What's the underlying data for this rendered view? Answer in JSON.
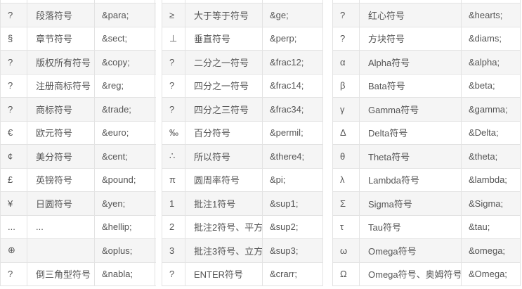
{
  "colors": {
    "row_stripe": "#f5f5f5",
    "row_plain": "#ffffff",
    "border": "#e3e3e3",
    "text": "#555555",
    "background": "#ffffff"
  },
  "tables": [
    {
      "id": "entity-table-left",
      "rows": [
        {
          "symbol": "?",
          "label": "段落符号",
          "code": "&para;"
        },
        {
          "symbol": "§",
          "label": "章节符号",
          "code": "&sect;"
        },
        {
          "symbol": "?",
          "label": "版权所有符号",
          "code": "&copy;"
        },
        {
          "symbol": "?",
          "label": "注册商标符号",
          "code": "&reg;"
        },
        {
          "symbol": "?",
          "label": "商标符号",
          "code": "&trade;"
        },
        {
          "symbol": "€",
          "label": "欧元符号",
          "code": "&euro;"
        },
        {
          "symbol": "¢",
          "label": "美分符号",
          "code": "&cent;"
        },
        {
          "symbol": "£",
          "label": "英镑符号",
          "code": "&pound;"
        },
        {
          "symbol": "¥",
          "label": "日圆符号",
          "code": "&yen;"
        },
        {
          "symbol": "...",
          "label": "...",
          "code": "&hellip;"
        },
        {
          "symbol": "⊕",
          "label": "",
          "code": "&oplus;"
        },
        {
          "symbol": "?",
          "label": "倒三角型符号",
          "code": "&nabla;"
        }
      ]
    },
    {
      "id": "entity-table-middle",
      "rows": [
        {
          "symbol": "≥",
          "label": "大于等于符号",
          "code": "&ge;"
        },
        {
          "symbol": "⊥",
          "label": "垂直符号",
          "code": "&perp;"
        },
        {
          "symbol": "?",
          "label": "二分之一符号",
          "code": "&frac12;"
        },
        {
          "symbol": "?",
          "label": "四分之一符号",
          "code": "&frac14;"
        },
        {
          "symbol": "?",
          "label": "四分之三符号",
          "code": "&frac34;"
        },
        {
          "symbol": "‰",
          "label": "百分符号",
          "code": "&permil;"
        },
        {
          "symbol": "∴",
          "label": "所以符号",
          "code": "&there4;"
        },
        {
          "symbol": "π",
          "label": "圆周率符号",
          "code": "&pi;"
        },
        {
          "symbol": "1",
          "label": "批注1符号",
          "code": "&sup1;"
        },
        {
          "symbol": "2",
          "label": "批注2符号、平方",
          "code": "&sup2;"
        },
        {
          "symbol": "3",
          "label": "批注3符号、立方",
          "code": "&sup3;"
        },
        {
          "symbol": "?",
          "label": "ENTER符号",
          "code": "&crarr;"
        }
      ]
    },
    {
      "id": "entity-table-right",
      "rows": [
        {
          "symbol": "?",
          "label": "红心符号",
          "code": "&hearts;"
        },
        {
          "symbol": "?",
          "label": "方块符号",
          "code": "&diams;"
        },
        {
          "symbol": "α",
          "label": "Alpha符号",
          "code": "&alpha;"
        },
        {
          "symbol": "β",
          "label": "Bata符号",
          "code": "&beta;"
        },
        {
          "symbol": "γ",
          "label": "Gamma符号",
          "code": "&gamma;"
        },
        {
          "symbol": "Δ",
          "label": "Delta符号",
          "code": "&Delta;"
        },
        {
          "symbol": "θ",
          "label": "Theta符号",
          "code": "&theta;"
        },
        {
          "symbol": "λ",
          "label": "Lambda符号",
          "code": "&lambda;"
        },
        {
          "symbol": "Σ",
          "label": "Sigma符号",
          "code": "&Sigma;"
        },
        {
          "symbol": "τ",
          "label": "Tau符号",
          "code": "&tau;"
        },
        {
          "symbol": "ω",
          "label": "Omega符号",
          "code": "&omega;"
        },
        {
          "symbol": "Ω",
          "label": "Omega符号、奥姆符号",
          "code": "&Omega;"
        }
      ]
    }
  ]
}
